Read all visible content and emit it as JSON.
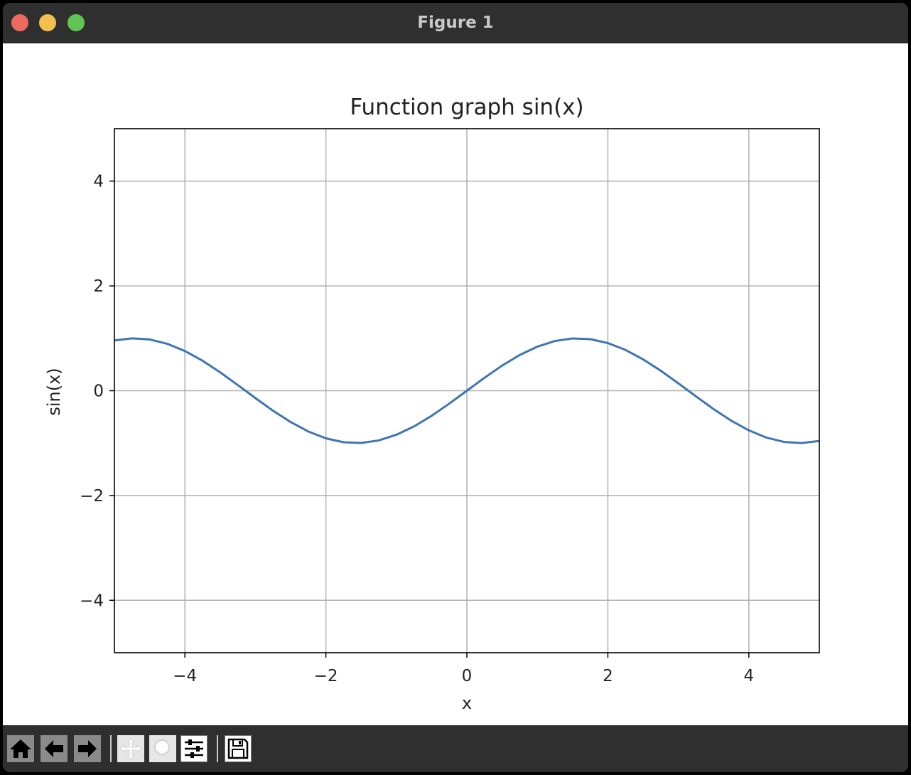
{
  "window": {
    "title": "Figure 1"
  },
  "toolbar": {
    "buttons": [
      {
        "name": "home-button",
        "icon": "home-icon"
      },
      {
        "name": "back-button",
        "icon": "arrow-left-icon"
      },
      {
        "name": "forward-button",
        "icon": "arrow-right-icon"
      },
      {
        "name": "pan-button",
        "icon": "move-icon"
      },
      {
        "name": "zoom-button",
        "icon": "magnifier-icon"
      },
      {
        "name": "configure-subplots-button",
        "icon": "sliders-icon"
      },
      {
        "name": "save-button",
        "icon": "floppy-disk-icon"
      }
    ]
  },
  "chart_data": {
    "type": "line",
    "title": "Function graph sin(x)",
    "xlabel": "x",
    "ylabel": "sin(x)",
    "xlim": [
      -5,
      5
    ],
    "ylim": [
      -5,
      5
    ],
    "xticks": [
      -4,
      -2,
      0,
      2,
      4
    ],
    "yticks": [
      -4,
      -2,
      0,
      2,
      4
    ],
    "xtick_labels": [
      "−4",
      "−2",
      "0",
      "2",
      "4"
    ],
    "ytick_labels": [
      "−4",
      "−2",
      "0",
      "2",
      "4"
    ],
    "grid": true,
    "series": [
      {
        "color": "#3d76b2",
        "x": [
          -5.0,
          -4.75,
          -4.5,
          -4.25,
          -4.0,
          -3.75,
          -3.5,
          -3.25,
          -3.0,
          -2.75,
          -2.5,
          -2.25,
          -2.0,
          -1.75,
          -1.5,
          -1.25,
          -1.0,
          -0.75,
          -0.5,
          -0.25,
          0.0,
          0.25,
          0.5,
          0.75,
          1.0,
          1.25,
          1.5,
          1.75,
          2.0,
          2.25,
          2.5,
          2.75,
          3.0,
          3.25,
          3.5,
          3.75,
          4.0,
          4.25,
          4.5,
          4.75,
          5.0
        ],
        "y": [
          0.959,
          0.999,
          0.978,
          0.895,
          0.757,
          0.572,
          0.351,
          0.108,
          -0.141,
          -0.382,
          -0.598,
          -0.778,
          -0.909,
          -0.984,
          -0.997,
          -0.949,
          -0.841,
          -0.682,
          -0.479,
          -0.247,
          0.0,
          0.247,
          0.479,
          0.682,
          0.841,
          0.949,
          0.997,
          0.984,
          0.909,
          0.778,
          0.598,
          0.382,
          0.141,
          -0.108,
          -0.351,
          -0.572,
          -0.757,
          -0.895,
          -0.978,
          -0.999,
          -0.959
        ]
      }
    ]
  }
}
